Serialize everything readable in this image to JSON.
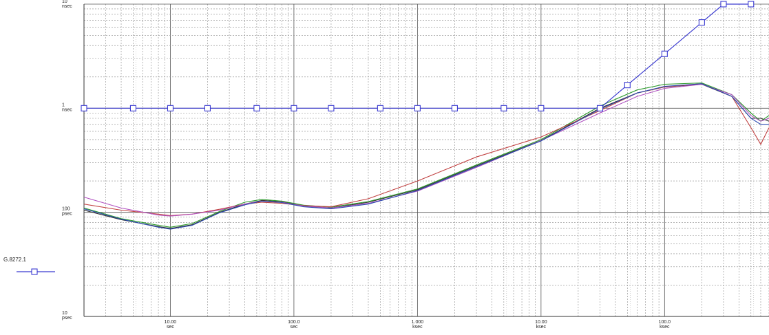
{
  "chart_data": {
    "type": "line",
    "title": "",
    "xlabel": "",
    "ylabel": "",
    "x_scale": "log",
    "y_scale": "log",
    "xlim_seconds": [
      2,
      700000
    ],
    "ylim_seconds": [
      1e-11,
      1e-08
    ],
    "grid": true,
    "legend_position": "left",
    "x_ticks": [
      {
        "value": 10,
        "label": [
          "10.00",
          "sec"
        ]
      },
      {
        "value": 100,
        "label": [
          "100.0",
          "sec"
        ]
      },
      {
        "value": 1000,
        "label": [
          "1.000",
          "ksec"
        ]
      },
      {
        "value": 10000,
        "label": [
          "10.00",
          "ksec"
        ]
      },
      {
        "value": 100000,
        "label": [
          "100.0",
          "ksec"
        ]
      }
    ],
    "y_ticks": [
      {
        "value": 1e-08,
        "label": [
          "10",
          "nsec"
        ]
      },
      {
        "value": 1e-09,
        "label": [
          "1",
          "nsec"
        ]
      },
      {
        "value": 1e-10,
        "label": [
          "100",
          "psec"
        ]
      },
      {
        "value": 1e-11,
        "label": [
          "10",
          "psec"
        ]
      }
    ],
    "series": [
      {
        "name": "G.8272.1",
        "color": "#3a3ad0",
        "marker": "square",
        "x": [
          2,
          5,
          10,
          20,
          50,
          100,
          200,
          500,
          1000,
          2000,
          5000,
          10000,
          30000,
          50000,
          100000,
          200000,
          300000,
          500000
        ],
        "y": [
          1e-09,
          1e-09,
          1e-09,
          1e-09,
          1e-09,
          1e-09,
          1e-09,
          1e-09,
          1e-09,
          1e-09,
          1e-09,
          1e-09,
          1e-09,
          1.67e-09,
          3.33e-09,
          6.67e-09,
          1e-08,
          1e-08
        ]
      },
      {
        "color": "#303030",
        "x": [
          2,
          4,
          8,
          10,
          15,
          25,
          40,
          55,
          80,
          120,
          200,
          400,
          1000,
          3000,
          10000,
          30000,
          60000,
          100000,
          200000,
          350000,
          500000,
          600000,
          700000
        ],
        "y": [
          1.05e-10,
          8.5e-11,
          7.3e-11,
          7e-11,
          7.6e-11,
          1e-10,
          1.2e-10,
          1.3e-10,
          1.27e-10,
          1.15e-10,
          1.1e-10,
          1.25e-10,
          1.65e-10,
          2.8e-10,
          4.9e-10,
          1e-09,
          1.4e-09,
          1.6e-09,
          1.7e-09,
          1.3e-09,
          8e-10,
          8e-10,
          7.5e-10
        ]
      },
      {
        "color": "#2a9a2a",
        "x": [
          2,
          4,
          8,
          10,
          15,
          25,
          40,
          55,
          80,
          120,
          200,
          400,
          1000,
          3000,
          10000,
          30000,
          60000,
          100000,
          200000,
          350000,
          500000,
          600000,
          700000
        ],
        "y": [
          1.1e-10,
          8.7e-11,
          7.5e-11,
          7.2e-11,
          7.8e-11,
          1.02e-10,
          1.25e-10,
          1.33e-10,
          1.28e-10,
          1.17e-10,
          1.12e-10,
          1.27e-10,
          1.68e-10,
          2.85e-10,
          5e-10,
          1.05e-09,
          1.5e-09,
          1.7e-09,
          1.75e-09,
          1.35e-09,
          9e-10,
          7.5e-10,
          8.5e-10
        ]
      },
      {
        "color": "#c04040",
        "x": [
          2,
          4,
          8,
          10,
          15,
          25,
          40,
          55,
          80,
          120,
          200,
          400,
          1000,
          3000,
          10000,
          30000,
          60000,
          100000,
          200000,
          350000,
          500000,
          600000,
          700000
        ],
        "y": [
          1.2e-10,
          1.05e-10,
          9.6e-11,
          9.3e-11,
          9.6e-11,
          1.07e-10,
          1.2e-10,
          1.25e-10,
          1.22e-10,
          1.16e-10,
          1.13e-10,
          1.35e-10,
          2e-10,
          3.4e-10,
          5.3e-10,
          9.5e-10,
          1.4e-09,
          1.6e-09,
          1.72e-09,
          1.3e-09,
          6.5e-10,
          4.5e-10,
          6.5e-10
        ]
      },
      {
        "color": "#b050c0",
        "x": [
          2,
          4,
          8,
          10,
          15,
          25,
          40,
          55,
          80,
          120,
          200,
          400,
          1000,
          3000,
          10000,
          30000,
          60000,
          100000,
          200000,
          350000,
          500000,
          600000,
          700000
        ],
        "y": [
          1.4e-10,
          1.1e-10,
          9.4e-11,
          9.2e-11,
          9.6e-11,
          1.05e-10,
          1.2e-10,
          1.28e-10,
          1.25e-10,
          1.15e-10,
          1.1e-10,
          1.22e-10,
          1.6e-10,
          2.7e-10,
          4.9e-10,
          9e-10,
          1.3e-09,
          1.55e-09,
          1.7e-09,
          1.35e-09,
          8.5e-10,
          7.5e-10,
          8e-10
        ]
      },
      {
        "color": "#2a4ab0",
        "x": [
          2,
          4,
          8,
          10,
          15,
          25,
          40,
          55,
          80,
          120,
          200,
          400,
          1000,
          3000,
          10000,
          30000,
          60000,
          100000,
          200000,
          350000,
          500000,
          600000,
          700000
        ],
        "y": [
          1.08e-10,
          8.6e-11,
          7.2e-11,
          6.9e-11,
          7.5e-11,
          9.9e-11,
          1.18e-10,
          1.28e-10,
          1.24e-10,
          1.13e-10,
          1.08e-10,
          1.2e-10,
          1.62e-10,
          2.75e-10,
          4.85e-10,
          9.8e-10,
          1.4e-09,
          1.62e-09,
          1.72e-09,
          1.3e-09,
          8e-10,
          7e-10,
          7e-10
        ]
      }
    ]
  },
  "legend": {
    "label": "G.8272.1"
  }
}
